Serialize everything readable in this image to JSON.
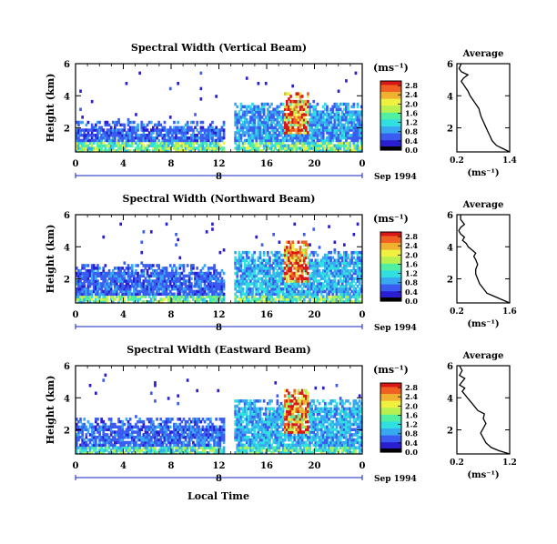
{
  "colors": {
    "scale": [
      "#101060",
      "#2a1fd0",
      "#3a5cf0",
      "#38a8f0",
      "#30e0e0",
      "#50f0a0",
      "#b8f050",
      "#f0f040",
      "#f0b030",
      "#f06020",
      "#d81818"
    ],
    "axis": "#000000",
    "date_bar": "#1020c0",
    "average_line": "#000000"
  },
  "common": {
    "local_time_label": "Local Time",
    "date_label": "Sep 1994",
    "date_tick": "8",
    "height_label": "Height (km)",
    "units_label": "(ms⁻¹)",
    "average_title": "Average",
    "average_xlabel": "(ms⁻¹)"
  },
  "chart_data": [
    {
      "type": "heatmap",
      "title": "Spectral Width (Vertical Beam)",
      "xlabel": "Local Time",
      "ylabel": "Height (km)",
      "x_ticks": [
        "0",
        "4",
        "8",
        "12",
        "16",
        "20",
        "0"
      ],
      "xlim": [
        0,
        24
      ],
      "y_ticks": [
        "2",
        "4",
        "6"
      ],
      "ylim": [
        0.5,
        6
      ],
      "data_gap": [
        12.5,
        13.3
      ],
      "colorbar": {
        "label": "(ms⁻¹)",
        "ticks": [
          "0.0",
          "0.4",
          "0.8",
          "1.2",
          "1.6",
          "2.0",
          "2.4",
          "2.8"
        ],
        "range": [
          0,
          3.0
        ]
      },
      "features": [
        {
          "desc": "surface layer",
          "t0": 0,
          "t1": 24,
          "h0": 0.5,
          "h1": 1.2,
          "level": 1.4
        },
        {
          "desc": "morning band",
          "t0": 0,
          "t1": 12.5,
          "h0": 0.5,
          "h1": 2.5,
          "level": 0.6
        },
        {
          "desc": "afternoon band",
          "t0": 13.3,
          "t1": 24,
          "h0": 0.5,
          "h1": 3.6,
          "level": 0.8
        },
        {
          "desc": "convective plume",
          "t0": 17.5,
          "t1": 19.5,
          "h0": 1.6,
          "h1": 4.3,
          "level": 2.5
        }
      ],
      "average": {
        "title": "Average",
        "xlabel": "(ms⁻¹)",
        "x_ticks": [
          "0.2",
          "1.4"
        ],
        "xlim": [
          0.2,
          1.4
        ],
        "y_ticks": [
          "2",
          "4",
          "6"
        ],
        "ylim": [
          0.5,
          6
        ],
        "x": [
          1.4,
          1.25,
          1.1,
          1.0,
          0.95,
          0.9,
          0.85,
          0.8,
          0.75,
          0.72,
          0.7,
          0.65,
          0.6,
          0.55,
          0.5,
          0.45,
          0.4,
          0.35,
          0.3,
          0.35,
          0.45,
          0.3,
          0.25,
          0.3
        ],
        "y": [
          0.5,
          0.7,
          0.9,
          1.2,
          1.5,
          1.8,
          2.1,
          2.4,
          2.7,
          3.0,
          3.2,
          3.4,
          3.6,
          3.8,
          4.0,
          4.3,
          4.5,
          4.7,
          4.9,
          5.1,
          5.3,
          5.5,
          5.7,
          6.0
        ]
      }
    },
    {
      "type": "heatmap",
      "title": "Spectral Width (Northward Beam)",
      "xlabel": "Local Time",
      "ylabel": "Height (km)",
      "x_ticks": [
        "0",
        "4",
        "8",
        "12",
        "16",
        "20",
        "0"
      ],
      "xlim": [
        0,
        24
      ],
      "y_ticks": [
        "2",
        "4",
        "6"
      ],
      "ylim": [
        0.5,
        6
      ],
      "data_gap": [
        12.5,
        13.3
      ],
      "colorbar": {
        "label": "(ms⁻¹)",
        "ticks": [
          "0.0",
          "0.4",
          "0.8",
          "1.2",
          "1.6",
          "2.0",
          "2.4",
          "2.8"
        ],
        "range": [
          0,
          3.0
        ]
      },
      "features": [
        {
          "desc": "surface layer",
          "t0": 0,
          "t1": 24,
          "h0": 0.5,
          "h1": 1.0,
          "level": 1.4
        },
        {
          "desc": "morning band",
          "t0": 0,
          "t1": 12.5,
          "h0": 0.5,
          "h1": 3.0,
          "level": 0.6
        },
        {
          "desc": "afternoon band",
          "t0": 13.3,
          "t1": 24,
          "h0": 0.5,
          "h1": 3.8,
          "level": 0.9
        },
        {
          "desc": "convective plume",
          "t0": 17.5,
          "t1": 19.5,
          "h0": 1.8,
          "h1": 4.4,
          "level": 2.5
        }
      ],
      "average": {
        "title": "Average",
        "xlabel": "(ms⁻¹)",
        "x_ticks": [
          "0.2",
          "1.6"
        ],
        "xlim": [
          0.2,
          1.6
        ],
        "y_ticks": [
          "2",
          "4",
          "6"
        ],
        "ylim": [
          0.5,
          6
        ],
        "x": [
          1.6,
          1.4,
          1.2,
          1.0,
          0.9,
          0.8,
          0.75,
          0.7,
          0.7,
          0.75,
          0.7,
          0.65,
          0.7,
          0.6,
          0.5,
          0.45,
          0.35,
          0.4,
          0.3,
          0.25,
          0.3,
          0.4,
          0.3,
          0.3
        ],
        "y": [
          0.5,
          0.7,
          0.9,
          1.1,
          1.4,
          1.7,
          2.0,
          2.3,
          2.6,
          2.9,
          3.2,
          3.4,
          3.6,
          3.8,
          4.0,
          4.2,
          4.4,
          4.6,
          4.8,
          5.0,
          5.2,
          5.4,
          5.7,
          6.0
        ]
      }
    },
    {
      "type": "heatmap",
      "title": "Spectral Width (Eastward Beam)",
      "xlabel": "Local Time",
      "ylabel": "Height (km)",
      "x_ticks": [
        "0",
        "4",
        "8",
        "12",
        "16",
        "20",
        "0"
      ],
      "xlim": [
        0,
        24
      ],
      "y_ticks": [
        "2",
        "4",
        "6"
      ],
      "ylim": [
        0.5,
        6
      ],
      "data_gap": [
        12.5,
        13.3
      ],
      "colorbar": {
        "label": "(ms⁻¹)",
        "ticks": [
          "0.0",
          "0.4",
          "0.8",
          "1.2",
          "1.6",
          "2.0",
          "2.4",
          "2.8"
        ],
        "range": [
          0,
          3.0
        ]
      },
      "features": [
        {
          "desc": "surface layer",
          "t0": 0,
          "t1": 24,
          "h0": 0.5,
          "h1": 1.0,
          "level": 1.3
        },
        {
          "desc": "morning band",
          "t0": 0,
          "t1": 12.5,
          "h0": 0.5,
          "h1": 2.8,
          "level": 0.6
        },
        {
          "desc": "afternoon band",
          "t0": 13.3,
          "t1": 24,
          "h0": 0.5,
          "h1": 3.9,
          "level": 0.9
        },
        {
          "desc": "convective plume",
          "t0": 17.5,
          "t1": 19.5,
          "h0": 1.8,
          "h1": 4.5,
          "level": 2.5
        }
      ],
      "average": {
        "title": "Average",
        "xlabel": "(ms⁻¹)",
        "x_ticks": [
          "0.2",
          "1.2"
        ],
        "xlim": [
          0.2,
          1.2
        ],
        "y_ticks": [
          "2",
          "4",
          "6"
        ],
        "ylim": [
          0.5,
          6
        ],
        "x": [
          1.2,
          1.0,
          0.85,
          0.75,
          0.7,
          0.65,
          0.7,
          0.75,
          0.7,
          0.72,
          0.6,
          0.55,
          0.5,
          0.45,
          0.4,
          0.35,
          0.3,
          0.35,
          0.25,
          0.3,
          0.35,
          0.25,
          0.3,
          0.25
        ],
        "y": [
          0.5,
          0.7,
          0.9,
          1.2,
          1.5,
          1.8,
          2.1,
          2.4,
          2.7,
          3.0,
          3.2,
          3.4,
          3.6,
          3.8,
          4.0,
          4.2,
          4.4,
          4.6,
          4.8,
          5.0,
          5.2,
          5.4,
          5.7,
          6.0
        ]
      }
    }
  ]
}
